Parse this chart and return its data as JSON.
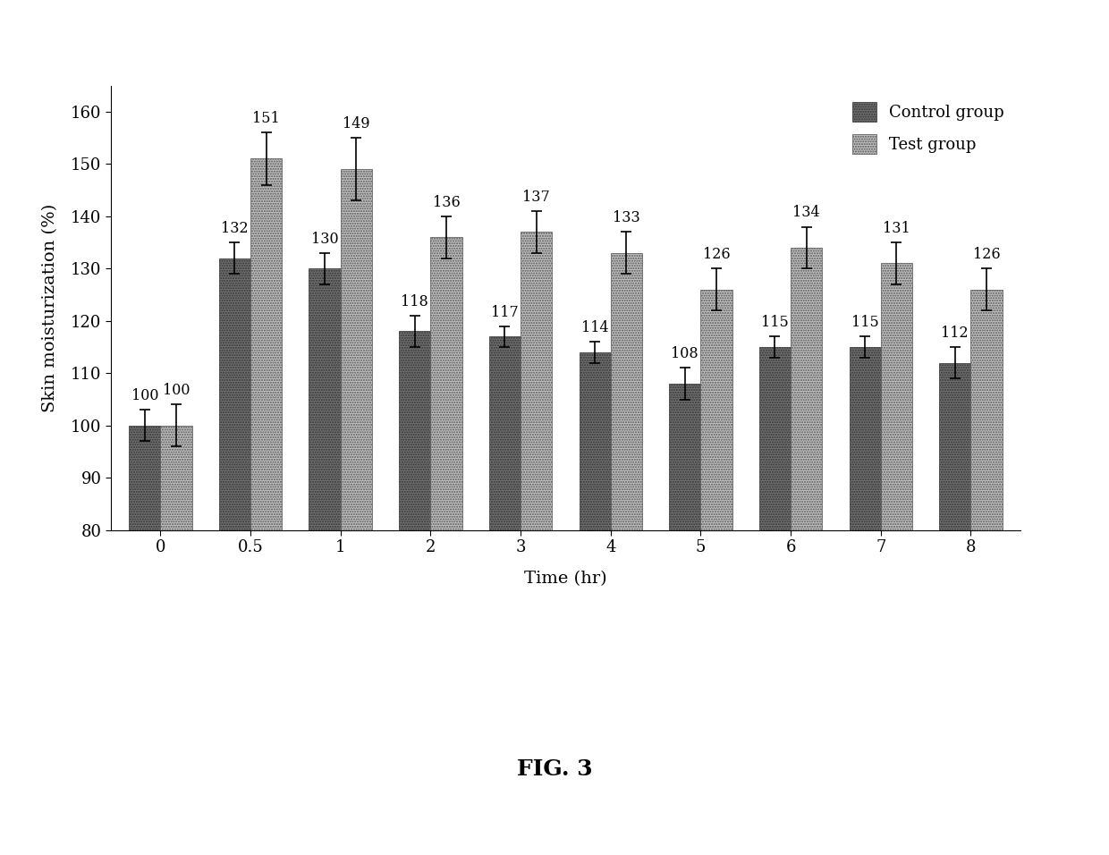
{
  "time_labels": [
    "0",
    "0.5",
    "1",
    "2",
    "3",
    "4",
    "5",
    "6",
    "7",
    "8"
  ],
  "control_values": [
    100,
    132,
    130,
    118,
    117,
    114,
    108,
    115,
    115,
    112
  ],
  "test_values": [
    100,
    151,
    149,
    136,
    137,
    133,
    126,
    134,
    131,
    126
  ],
  "control_errors": [
    3,
    3,
    3,
    3,
    2,
    2,
    3,
    2,
    2,
    3
  ],
  "test_errors": [
    4,
    5,
    6,
    4,
    4,
    4,
    4,
    4,
    4,
    4
  ],
  "control_hatch": ".....",
  "test_hatch": ".....",
  "control_color": "#888888",
  "control_face": "#707070",
  "test_color": "#bbbbbb",
  "test_face": "#c0c0c0",
  "ylabel": "Skin moisturization (%)",
  "xlabel": "Time (hr)",
  "ylim": [
    80,
    165
  ],
  "yticks": [
    80,
    90,
    100,
    110,
    120,
    130,
    140,
    150,
    160
  ],
  "legend_control": "Control group",
  "legend_test": "Test group",
  "fig_label": "FIG. 3",
  "bar_width": 0.35,
  "background_color": "#ffffff"
}
